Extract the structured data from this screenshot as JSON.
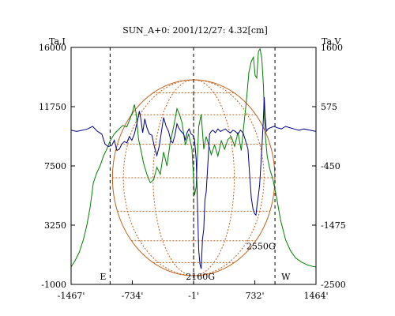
{
  "chart_data": {
    "type": "line",
    "title": "SUN_A+0: 2001/12/27: 4.32[cm]",
    "left_axis": {
      "label": "Ta,I",
      "ticks": [
        "16000",
        "11750",
        "7500",
        "3250",
        "-1000"
      ],
      "range": [
        -1000,
        16000
      ]
    },
    "right_axis": {
      "label": "Ta,V",
      "ticks": [
        "1600",
        "575",
        "-450",
        "-1475",
        "-2500"
      ],
      "range": [
        -2500,
        1600
      ]
    },
    "x_axis": {
      "ticks": [
        "-1467'",
        "-734'",
        "-1'",
        "732'",
        "1464'"
      ],
      "range": [
        -1467,
        1464
      ]
    },
    "markers": {
      "east": "E",
      "west": "W",
      "east_x": -1000,
      "center_x": -1,
      "west_x": 973
    },
    "annotations": [
      {
        "text": "2160G",
        "x": 80,
        "y_right": -2230
      },
      {
        "text": "2550G",
        "x": 805,
        "y_right": -1700
      }
    ],
    "solar_disk_radius_arcmin": 972,
    "colors": {
      "intensity": "#008000",
      "polarization": "#000080",
      "disk": "#c0601a",
      "frame": "#000000"
    },
    "series": [
      {
        "name": "Ta,I",
        "axis": "left",
        "color": "#008000",
        "points": [
          [
            -1467,
            250
          ],
          [
            -1420,
            700
          ],
          [
            -1370,
            1300
          ],
          [
            -1320,
            2200
          ],
          [
            -1280,
            3200
          ],
          [
            -1240,
            4500
          ],
          [
            -1200,
            6300
          ],
          [
            -1160,
            7000
          ],
          [
            -1120,
            7500
          ],
          [
            -1080,
            8200
          ],
          [
            -1040,
            8700
          ],
          [
            -1000,
            9300
          ],
          [
            -950,
            9800
          ],
          [
            -900,
            10100
          ],
          [
            -850,
            10400
          ],
          [
            -800,
            10300
          ],
          [
            -760,
            10900
          ],
          [
            -730,
            11400
          ],
          [
            -710,
            11900
          ],
          [
            -690,
            11300
          ],
          [
            -660,
            9400
          ],
          [
            -630,
            8600
          ],
          [
            -600,
            7700
          ],
          [
            -560,
            6900
          ],
          [
            -520,
            6300
          ],
          [
            -480,
            6500
          ],
          [
            -440,
            7400
          ],
          [
            -400,
            6900
          ],
          [
            -360,
            8500
          ],
          [
            -320,
            7500
          ],
          [
            -280,
            9200
          ],
          [
            -240,
            10300
          ],
          [
            -200,
            11600
          ],
          [
            -170,
            11200
          ],
          [
            -140,
            10600
          ],
          [
            -100,
            9000
          ],
          [
            -60,
            9800
          ],
          [
            -20,
            8700
          ],
          [
            10,
            5400
          ],
          [
            30,
            6000
          ],
          [
            60,
            10300
          ],
          [
            90,
            11200
          ],
          [
            120,
            8700
          ],
          [
            150,
            9600
          ],
          [
            180,
            9000
          ],
          [
            210,
            8300
          ],
          [
            250,
            9000
          ],
          [
            290,
            8200
          ],
          [
            330,
            9300
          ],
          [
            370,
            8700
          ],
          [
            410,
            9400
          ],
          [
            450,
            9600
          ],
          [
            490,
            8900
          ],
          [
            530,
            9900
          ],
          [
            570,
            8600
          ],
          [
            600,
            10400
          ],
          [
            630,
            12100
          ],
          [
            660,
            14200
          ],
          [
            690,
            15000
          ],
          [
            715,
            15300
          ],
          [
            735,
            14000
          ],
          [
            755,
            13800
          ],
          [
            775,
            15700
          ],
          [
            795,
            15900
          ],
          [
            815,
            15200
          ],
          [
            835,
            13200
          ],
          [
            855,
            9800
          ],
          [
            880,
            8200
          ],
          [
            910,
            7300
          ],
          [
            950,
            6500
          ],
          [
            990,
            5300
          ],
          [
            1040,
            3600
          ],
          [
            1100,
            2200
          ],
          [
            1160,
            1400
          ],
          [
            1220,
            900
          ],
          [
            1290,
            600
          ],
          [
            1360,
            400
          ],
          [
            1420,
            300
          ],
          [
            1464,
            250
          ]
        ]
      },
      {
        "name": "Ta,V",
        "axis": "right",
        "color": "#000080",
        "points": [
          [
            -1467,
            168
          ],
          [
            -1400,
            146
          ],
          [
            -1330,
            168
          ],
          [
            -1270,
            190
          ],
          [
            -1210,
            234
          ],
          [
            -1150,
            146
          ],
          [
            -1100,
            102
          ],
          [
            -1060,
            -73
          ],
          [
            -1020,
            -117
          ],
          [
            -980,
            -95
          ],
          [
            -950,
            -7
          ],
          [
            -920,
            -183
          ],
          [
            -890,
            -161
          ],
          [
            -860,
            -73
          ],
          [
            -830,
            -29
          ],
          [
            -800,
            -51
          ],
          [
            -770,
            58
          ],
          [
            -740,
            -7
          ],
          [
            -710,
            102
          ],
          [
            -680,
            278
          ],
          [
            -650,
            497
          ],
          [
            -630,
            344
          ],
          [
            -610,
            124
          ],
          [
            -585,
            366
          ],
          [
            -560,
            212
          ],
          [
            -530,
            102
          ],
          [
            -500,
            80
          ],
          [
            -470,
            -117
          ],
          [
            -440,
            -270
          ],
          [
            -410,
            -95
          ],
          [
            -385,
            146
          ],
          [
            -360,
            388
          ],
          [
            -330,
            234
          ],
          [
            -300,
            146
          ],
          [
            -270,
            -29
          ],
          [
            -250,
            -51
          ],
          [
            -225,
            80
          ],
          [
            -200,
            278
          ],
          [
            -180,
            212
          ],
          [
            -150,
            146
          ],
          [
            -120,
            102
          ],
          [
            -100,
            -7
          ],
          [
            -80,
            124
          ],
          [
            -55,
            190
          ],
          [
            -30,
            102
          ],
          [
            -10,
            80
          ],
          [
            10,
            12
          ],
          [
            30,
            -336
          ],
          [
            45,
            -1083
          ],
          [
            60,
            -1900
          ],
          [
            75,
            -2150
          ],
          [
            90,
            -2230
          ],
          [
            105,
            -1720
          ],
          [
            120,
            -1550
          ],
          [
            135,
            -1040
          ],
          [
            150,
            -900
          ],
          [
            170,
            -420
          ],
          [
            190,
            102
          ],
          [
            210,
            146
          ],
          [
            230,
            168
          ],
          [
            260,
            124
          ],
          [
            290,
            190
          ],
          [
            320,
            146
          ],
          [
            350,
            168
          ],
          [
            380,
            190
          ],
          [
            410,
            146
          ],
          [
            440,
            124
          ],
          [
            470,
            168
          ],
          [
            500,
            146
          ],
          [
            530,
            102
          ],
          [
            560,
            168
          ],
          [
            590,
            124
          ],
          [
            620,
            -7
          ],
          [
            650,
            -160
          ],
          [
            670,
            -600
          ],
          [
            690,
            -1000
          ],
          [
            710,
            -1200
          ],
          [
            730,
            -1280
          ],
          [
            745,
            -1300
          ],
          [
            760,
            -1110
          ],
          [
            775,
            -960
          ],
          [
            790,
            -770
          ],
          [
            805,
            -410
          ],
          [
            820,
            -40
          ],
          [
            835,
            400
          ],
          [
            845,
            740
          ],
          [
            855,
            400
          ],
          [
            870,
            150
          ],
          [
            890,
            190
          ],
          [
            920,
            212
          ],
          [
            960,
            234
          ],
          [
            1000,
            212
          ],
          [
            1050,
            190
          ],
          [
            1100,
            234
          ],
          [
            1150,
            212
          ],
          [
            1200,
            190
          ],
          [
            1260,
            168
          ],
          [
            1320,
            190
          ],
          [
            1390,
            168
          ],
          [
            1464,
            146
          ]
        ]
      }
    ]
  }
}
